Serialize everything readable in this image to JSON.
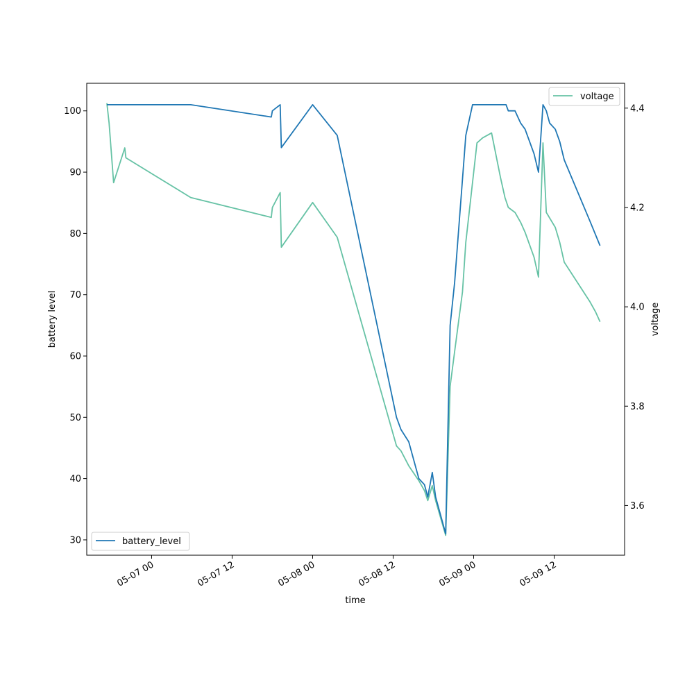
{
  "chart_data": {
    "type": "line",
    "title": "",
    "xlabel": "time",
    "ylabel": "battery level",
    "y2label": "voltage",
    "x_ticks": [
      "05-07 00",
      "05-07 12",
      "05-08 00",
      "05-08 12",
      "05-09 00",
      "05-09 12"
    ],
    "x_range": [
      "2024-05-06 14:20",
      "2024-05-09 22:30"
    ],
    "ylim": [
      27.5,
      104.5
    ],
    "y_ticks": [
      30,
      40,
      50,
      60,
      70,
      80,
      90,
      100
    ],
    "y2lim": [
      3.5,
      4.45
    ],
    "y2_ticks": [
      3.6,
      3.8,
      4.0,
      4.2,
      4.4
    ],
    "grid": false,
    "legend_battery_position": "lower-left",
    "legend_voltage_position": "upper-right",
    "colors": {
      "battery_level": "#1f77b4",
      "voltage": "#66c2a5"
    },
    "series": [
      {
        "name": "battery_level",
        "axis": "left",
        "points": [
          [
            "2024-05-06 17:20",
            101
          ],
          [
            "2024-05-07 05:50",
            101
          ],
          [
            "2024-05-07 17:50",
            99
          ],
          [
            "2024-05-07 18:00",
            100
          ],
          [
            "2024-05-07 19:10",
            101
          ],
          [
            "2024-05-07 19:20",
            94
          ],
          [
            "2024-05-08 00:00",
            101
          ],
          [
            "2024-05-08 03:40",
            96
          ],
          [
            "2024-05-08 12:30",
            50
          ],
          [
            "2024-05-08 13:10",
            48
          ],
          [
            "2024-05-08 14:20",
            46
          ],
          [
            "2024-05-08 15:50",
            40
          ],
          [
            "2024-05-08 16:40",
            39
          ],
          [
            "2024-05-08 17:10",
            37
          ],
          [
            "2024-05-08 17:50",
            41
          ],
          [
            "2024-05-08 18:20",
            37
          ],
          [
            "2024-05-08 19:50",
            31
          ],
          [
            "2024-05-08 20:30",
            65
          ],
          [
            "2024-05-08 21:10",
            72
          ],
          [
            "2024-05-08 22:50",
            96
          ],
          [
            "2024-05-08 23:50",
            101
          ],
          [
            "2024-05-09 04:50",
            101
          ],
          [
            "2024-05-09 05:10",
            100
          ],
          [
            "2024-05-09 06:10",
            100
          ],
          [
            "2024-05-09 07:00",
            98
          ],
          [
            "2024-05-09 07:40",
            97
          ],
          [
            "2024-05-09 09:00",
            93
          ],
          [
            "2024-05-09 09:40",
            90
          ],
          [
            "2024-05-09 10:20",
            101
          ],
          [
            "2024-05-09 10:50",
            100
          ],
          [
            "2024-05-09 11:20",
            98
          ],
          [
            "2024-05-09 12:10",
            97
          ],
          [
            "2024-05-09 12:50",
            95
          ],
          [
            "2024-05-09 13:30",
            92
          ],
          [
            "2024-05-09 17:20",
            82
          ],
          [
            "2024-05-09 18:50",
            78
          ]
        ]
      },
      {
        "name": "voltage",
        "axis": "right",
        "points": [
          [
            "2024-05-06 17:20",
            4.41
          ],
          [
            "2024-05-06 17:40",
            4.37
          ],
          [
            "2024-05-06 18:20",
            4.25
          ],
          [
            "2024-05-06 20:00",
            4.32
          ],
          [
            "2024-05-06 20:10",
            4.3
          ],
          [
            "2024-05-07 05:50",
            4.22
          ],
          [
            "2024-05-07 17:50",
            4.18
          ],
          [
            "2024-05-07 18:00",
            4.2
          ],
          [
            "2024-05-07 19:10",
            4.23
          ],
          [
            "2024-05-07 19:20",
            4.12
          ],
          [
            "2024-05-08 00:00",
            4.21
          ],
          [
            "2024-05-08 03:40",
            4.14
          ],
          [
            "2024-05-08 12:30",
            3.72
          ],
          [
            "2024-05-08 13:10",
            3.71
          ],
          [
            "2024-05-08 14:20",
            3.68
          ],
          [
            "2024-05-08 15:50",
            3.65
          ],
          [
            "2024-05-08 16:40",
            3.63
          ],
          [
            "2024-05-08 17:10",
            3.61
          ],
          [
            "2024-05-08 17:50",
            3.64
          ],
          [
            "2024-05-08 18:20",
            3.61
          ],
          [
            "2024-05-08 19:50",
            3.54
          ],
          [
            "2024-05-08 20:30",
            3.84
          ],
          [
            "2024-05-08 21:10",
            3.91
          ],
          [
            "2024-05-08 22:20",
            4.03
          ],
          [
            "2024-05-08 22:50",
            4.13
          ],
          [
            "2024-05-09 00:30",
            4.33
          ],
          [
            "2024-05-09 01:20",
            4.34
          ],
          [
            "2024-05-09 02:40",
            4.35
          ],
          [
            "2024-05-09 04:00",
            4.26
          ],
          [
            "2024-05-09 04:40",
            4.22
          ],
          [
            "2024-05-09 05:10",
            4.2
          ],
          [
            "2024-05-09 06:10",
            4.19
          ],
          [
            "2024-05-09 07:00",
            4.17
          ],
          [
            "2024-05-09 07:40",
            4.15
          ],
          [
            "2024-05-09 09:00",
            4.1
          ],
          [
            "2024-05-09 09:40",
            4.06
          ],
          [
            "2024-05-09 10:20",
            4.33
          ],
          [
            "2024-05-09 10:50",
            4.19
          ],
          [
            "2024-05-09 12:10",
            4.16
          ],
          [
            "2024-05-09 12:50",
            4.13
          ],
          [
            "2024-05-09 13:30",
            4.09
          ],
          [
            "2024-05-09 17:20",
            4.01
          ],
          [
            "2024-05-09 18:10",
            3.99
          ],
          [
            "2024-05-09 18:50",
            3.97
          ]
        ]
      }
    ]
  }
}
